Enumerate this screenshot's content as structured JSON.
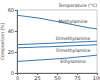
{
  "chart_data": {
    "type": "line",
    "x_label": "Temperature (°C)",
    "y_label": "Composition (%)",
    "x": [
      0,
      10,
      20,
      30,
      40,
      50,
      60,
      70,
      80,
      90,
      100
    ],
    "xlim": [
      0,
      100
    ],
    "xticks": [
      0,
      25,
      50,
      75,
      100
    ],
    "ylim": [
      0,
      60
    ],
    "yticks": [
      0,
      20,
      40,
      60
    ],
    "series": [
      {
        "name": "Methylamine",
        "color": "#3a78b5",
        "values": [
          55,
          54,
          53,
          52,
          50.5,
          49,
          47.5,
          46,
          44.5,
          43,
          42
        ]
      },
      {
        "name": "Dimethylamine",
        "color": "#3a78b5",
        "values": [
          27,
          27.3,
          27.6,
          28,
          28.3,
          28.6,
          29,
          29.3,
          29.6,
          30,
          30.3
        ]
      },
      {
        "name": "Trimethylamine",
        "color": "#3a78b5",
        "values": [
          24,
          24.2,
          24.5,
          24.8,
          25,
          25.3,
          25.6,
          26,
          26.3,
          26.6,
          27
        ]
      },
      {
        "name": "Ethylamine",
        "color": "#3a78b5",
        "values": [
          11,
          11.5,
          12,
          12.5,
          13,
          13.5,
          14,
          14.8,
          15.5,
          16.2,
          17
        ]
      }
    ]
  }
}
